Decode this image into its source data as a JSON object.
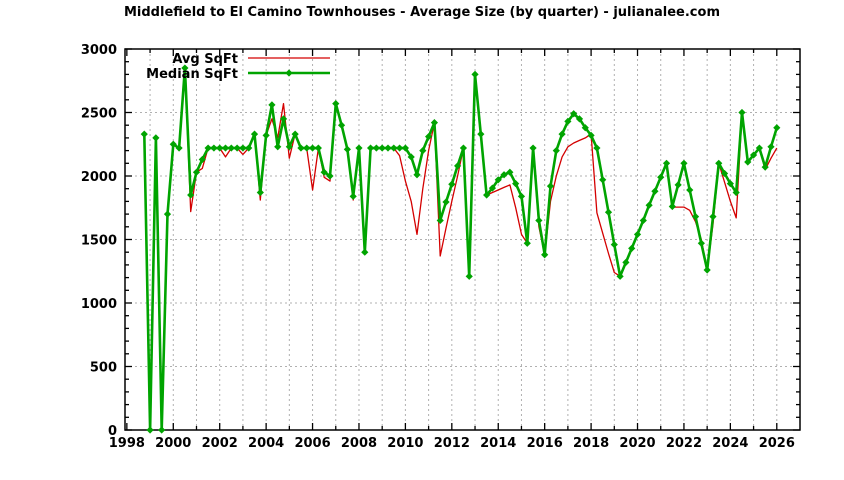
{
  "chart_data": {
    "type": "line",
    "title": "Middlefield to El Camino Townhouses - Average Size (by quarter) - julianalee.com",
    "xlabel": "",
    "ylabel": "",
    "xlim": [
      1997.92,
      2027.0
    ],
    "ylim": [
      0,
      3000
    ],
    "x_ticks_labeled": [
      1998,
      2000,
      2002,
      2004,
      2006,
      2008,
      2010,
      2012,
      2014,
      2016,
      2018,
      2020,
      2022,
      2024,
      2026
    ],
    "x_minor_tick_step": 1,
    "y_ticks_labeled": [
      0,
      500,
      1000,
      1500,
      2000,
      2500,
      3000
    ],
    "y_minor_tick_step": 100,
    "grid": {
      "vertical": "every 1 year, dashed",
      "horizontal": "every 500, dashed",
      "color": "#b0b0b0"
    },
    "legend_position": "top-left-inside",
    "border_color": "#000000",
    "x": [
      1998.75,
      1999.0,
      1999.25,
      1999.5,
      1999.75,
      2000.0,
      2000.25,
      2000.5,
      2000.75,
      2001.0,
      2001.25,
      2001.5,
      2001.75,
      2002.0,
      2002.25,
      2002.5,
      2002.75,
      2003.0,
      2003.25,
      2003.5,
      2003.75,
      2004.0,
      2004.25,
      2004.5,
      2004.75,
      2005.0,
      2005.25,
      2005.5,
      2005.75,
      2006.0,
      2006.25,
      2006.5,
      2006.75,
      2007.0,
      2007.25,
      2007.5,
      2007.75,
      2008.0,
      2008.25,
      2008.5,
      2008.75,
      2009.0,
      2009.25,
      2009.5,
      2009.75,
      2010.0,
      2010.25,
      2010.5,
      2010.75,
      2011.0,
      2011.25,
      2011.5,
      2011.75,
      2012.0,
      2012.25,
      2012.5,
      2012.75,
      2013.0,
      2013.25,
      2013.5,
      2013.75,
      2014.0,
      2014.25,
      2014.5,
      2014.75,
      2015.0,
      2015.25,
      2015.5,
      2015.75,
      2016.0,
      2016.25,
      2016.5,
      2016.75,
      2017.0,
      2017.25,
      2017.5,
      2017.75,
      2018.0,
      2018.25,
      2018.5,
      2018.75,
      2019.0,
      2019.25,
      2019.5,
      2019.75,
      2020.0,
      2020.25,
      2020.5,
      2020.75,
      2021.0,
      2021.25,
      2021.5,
      2021.75,
      2022.0,
      2022.25,
      2022.5,
      2022.75,
      2023.0,
      2023.25,
      2023.5,
      2023.75,
      2024.0,
      2024.25,
      2024.5,
      2024.75,
      2025.0,
      2025.25,
      2025.5,
      2025.75,
      2026.0
    ],
    "series": [
      {
        "name": "Avg SqFt",
        "color": "#d40000",
        "line_width": 1.3,
        "marker": "none",
        "values": [
          2330,
          0,
          2300,
          0,
          1690,
          2250,
          2220,
          2850,
          1720,
          2030,
          2060,
          2220,
          2220,
          2220,
          2150,
          2220,
          2220,
          2170,
          2220,
          2330,
          1810,
          2320,
          2450,
          2300,
          2570,
          2140,
          2330,
          2220,
          2220,
          1890,
          2220,
          1990,
          1960,
          2570,
          2400,
          2210,
          1810,
          2220,
          1390,
          2220,
          2220,
          2220,
          2220,
          2220,
          2160,
          1960,
          1800,
          1540,
          1900,
          2200,
          2420,
          1370,
          1590,
          1800,
          2000,
          2220,
          1240,
          2800,
          2330,
          1850,
          1870,
          1890,
          1910,
          1930,
          1750,
          1540,
          1470,
          2200,
          1600,
          1380,
          1800,
          2000,
          2150,
          2230,
          2260,
          2280,
          2300,
          2330,
          1710,
          1550,
          1390,
          1240,
          1210,
          1320,
          1430,
          1540,
          1650,
          1770,
          1880,
          1990,
          2100,
          1755,
          1755,
          1755,
          1730,
          1640,
          1500,
          1260,
          1620,
          2100,
          1950,
          1800,
          1670,
          2480,
          2110,
          2165,
          2220,
          2050,
          2140,
          2220
        ]
      },
      {
        "name": "Median SqFt",
        "color": "#00a400",
        "line_width": 2.6,
        "marker": "diamond",
        "values": [
          2330,
          0,
          2300,
          0,
          1700,
          2250,
          2220,
          2850,
          1850,
          2030,
          2130,
          2220,
          2220,
          2220,
          2220,
          2220,
          2220,
          2220,
          2220,
          2330,
          1870,
          2320,
          2560,
          2230,
          2450,
          2230,
          2330,
          2220,
          2220,
          2220,
          2220,
          2030,
          2000,
          2570,
          2400,
          2210,
          1840,
          2220,
          1400,
          2220,
          2220,
          2220,
          2220,
          2220,
          2220,
          2220,
          2150,
          2010,
          2200,
          2310,
          2420,
          1650,
          1795,
          1935,
          2080,
          2220,
          1210,
          2800,
          2330,
          1850,
          1905,
          1970,
          2010,
          2030,
          1940,
          1840,
          1470,
          2220,
          1650,
          1380,
          1920,
          2200,
          2330,
          2430,
          2490,
          2450,
          2380,
          2320,
          2220,
          1970,
          1715,
          1460,
          1210,
          1320,
          1430,
          1540,
          1650,
          1770,
          1880,
          1990,
          2100,
          1760,
          1930,
          2100,
          1890,
          1680,
          1470,
          1260,
          1680,
          2100,
          2020,
          1940,
          1870,
          2500,
          2110,
          2165,
          2220,
          2070,
          2230,
          2380
        ]
      }
    ]
  }
}
